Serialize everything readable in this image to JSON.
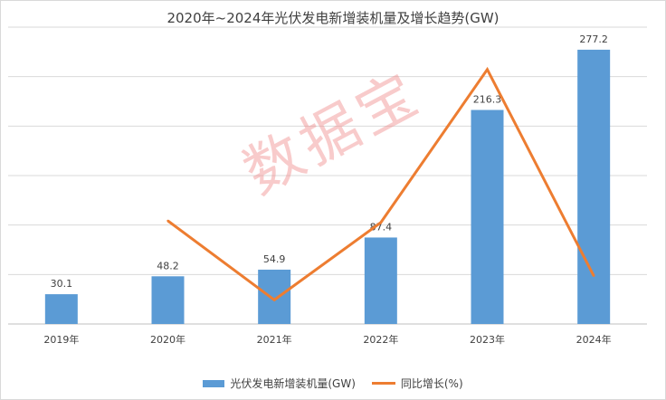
{
  "chart_data": {
    "type": "bar",
    "title": "2020年~2024年光伏发电新增装机量及增长趋势(GW)",
    "categories": [
      "2019年",
      "2020年",
      "2021年",
      "2022年",
      "2023年",
      "2024年"
    ],
    "ylim": [
      0,
      300
    ],
    "grid": true,
    "legend_position": "bottom",
    "series": [
      {
        "name": "光伏发电新增装机量(GW)",
        "type": "bar",
        "color": "#5b9bd5",
        "values": [
          30.1,
          48.2,
          54.9,
          87.4,
          216.3,
          277.2
        ],
        "labels": [
          "30.1",
          "48.2",
          "54.9",
          "87.4",
          "216.3",
          "277.2"
        ]
      },
      {
        "name": "同比增长(%)",
        "type": "line",
        "color": "#ed7d31",
        "values": [
          null,
          60,
          14,
          59,
          148,
          28
        ]
      }
    ]
  },
  "watermark": "数据宝"
}
